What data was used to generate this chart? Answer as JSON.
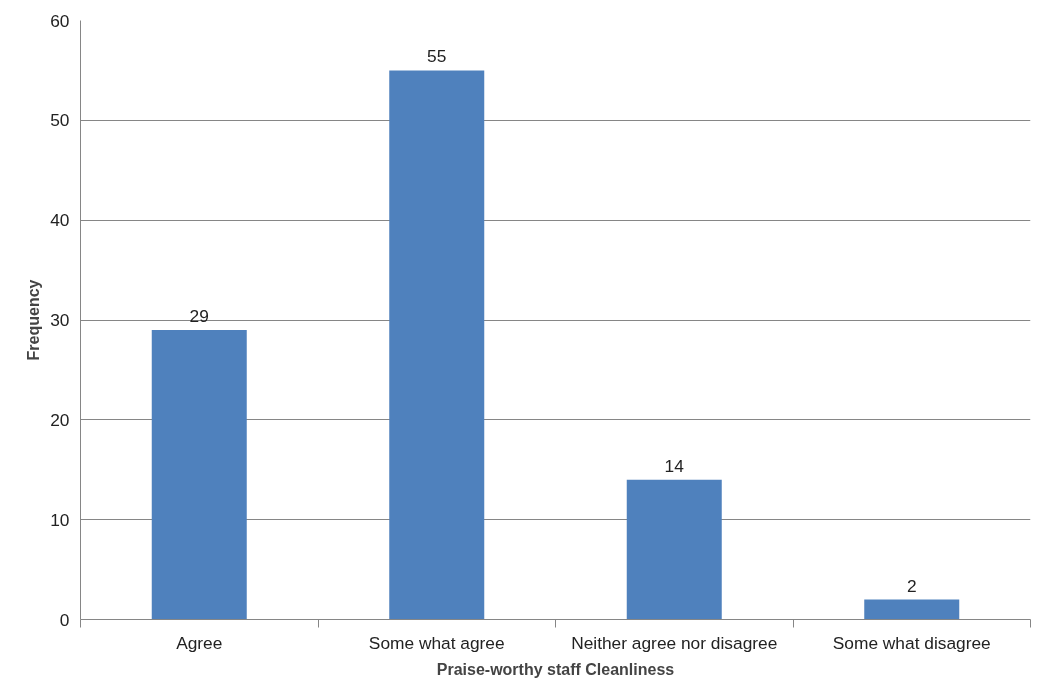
{
  "chart_data": {
    "type": "bar",
    "xlabel": "Praise-worthy staff Cleanliness",
    "ylabel": "Frequency",
    "categories": [
      "Agree",
      "Some what agree",
      "Neither agree nor disagree",
      "Some what disagree"
    ],
    "values": [
      29,
      55,
      14,
      2
    ],
    "color": "#4f81bd",
    "ylim": [
      0,
      60
    ],
    "yticks": [
      0,
      10,
      20,
      30,
      40,
      50,
      60
    ],
    "grid": "y",
    "data_labels": true
  }
}
